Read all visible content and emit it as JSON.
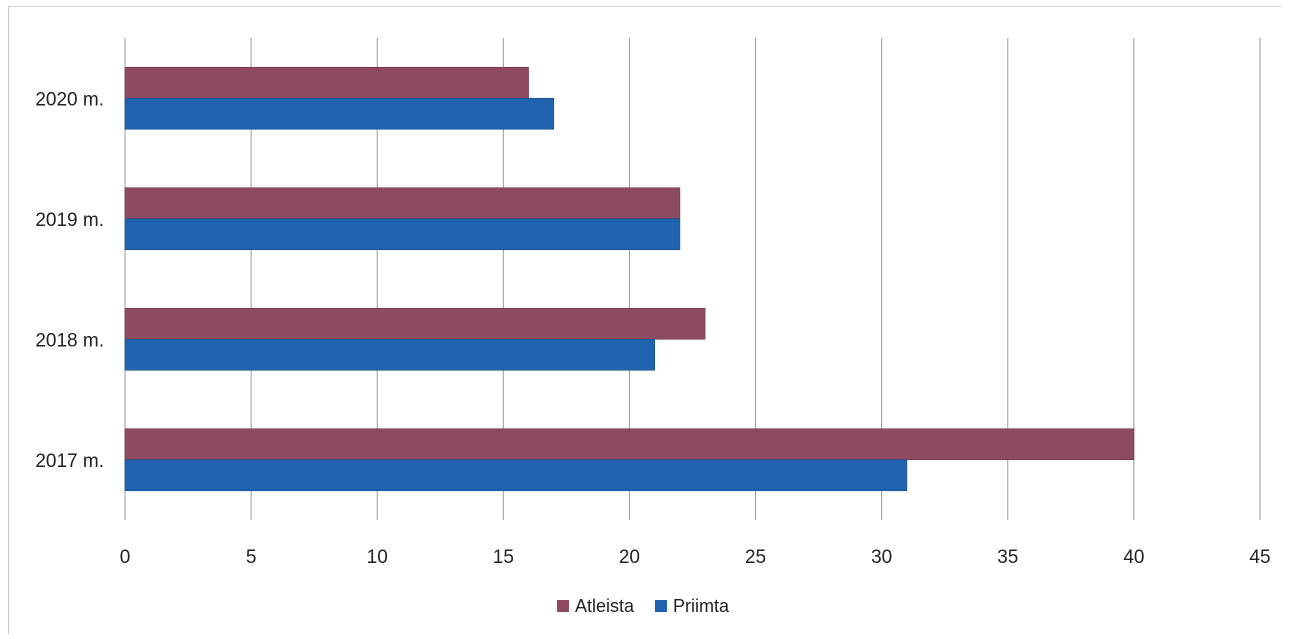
{
  "chart_data": {
    "type": "bar",
    "orientation": "horizontal",
    "categories": [
      "2020 m.",
      "2019 m.",
      "2018 m.",
      "2017 m."
    ],
    "series": [
      {
        "name": "Atleista",
        "color": "#8E4A5E",
        "values": [
          16,
          22,
          23,
          40
        ]
      },
      {
        "name": "Priimta",
        "color": "#1E62B0",
        "values": [
          17,
          22,
          21,
          31
        ]
      }
    ],
    "xlim": [
      0,
      45
    ],
    "x_ticks": [
      "0",
      "5",
      "10",
      "15",
      "20",
      "25",
      "30",
      "35",
      "40",
      "45"
    ],
    "grid": "vertical",
    "legend": "bottom-center"
  }
}
